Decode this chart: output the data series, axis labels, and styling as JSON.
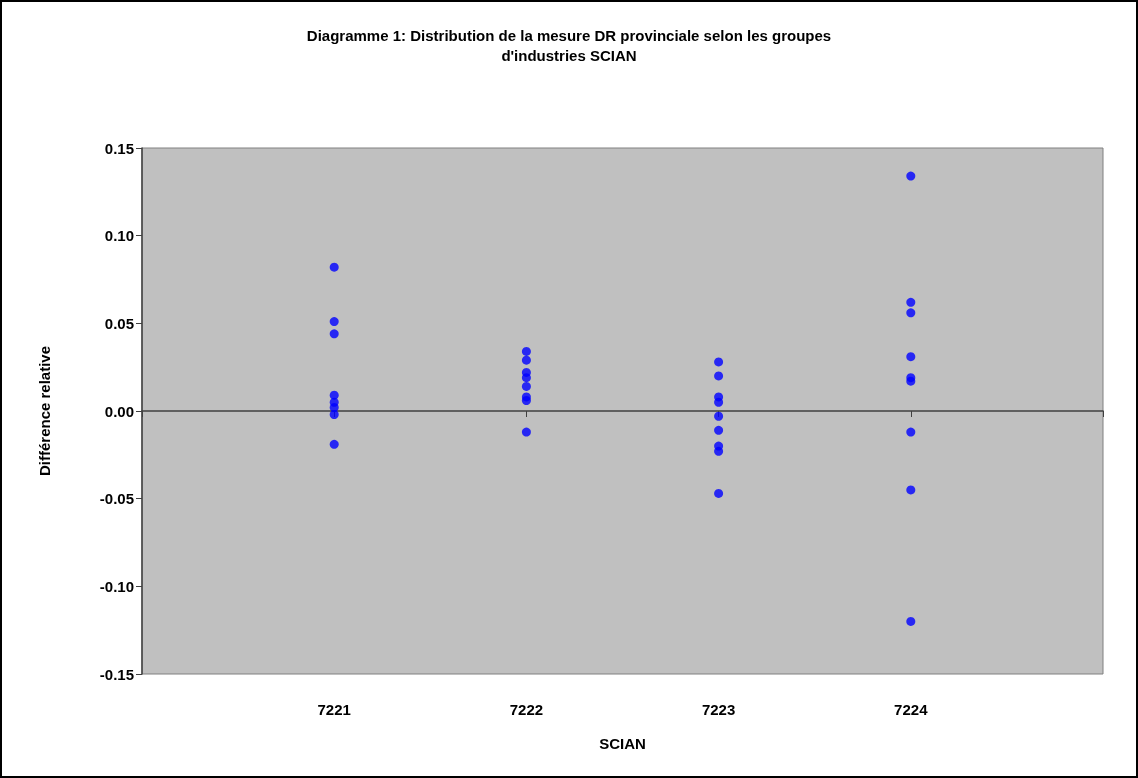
{
  "chart_data": {
    "type": "scatter",
    "title": "Diagramme 1: Distribution de la mesure DR provinciale selon les groupes\nd'industries SCIAN",
    "xlabel": "SCIAN",
    "ylabel": "Différence relative",
    "x": [
      7221,
      7221,
      7221,
      7221,
      7221,
      7221,
      7221,
      7221,
      7222,
      7222,
      7222,
      7222,
      7222,
      7222,
      7222,
      7222,
      7223,
      7223,
      7223,
      7223,
      7223,
      7223,
      7223,
      7223,
      7223,
      7224,
      7224,
      7224,
      7224,
      7224,
      7224,
      7224,
      7224,
      7224
    ],
    "values": [
      0.082,
      0.051,
      0.044,
      0.009,
      0.005,
      0.002,
      -0.002,
      -0.019,
      0.034,
      0.029,
      0.022,
      0.019,
      0.014,
      0.008,
      0.006,
      -0.012,
      0.028,
      0.02,
      0.008,
      0.005,
      -0.003,
      -0.011,
      -0.02,
      -0.023,
      -0.047,
      0.134,
      0.062,
      0.056,
      0.031,
      0.019,
      0.017,
      -0.012,
      -0.045,
      -0.12
    ],
    "color": "#0000ff",
    "marker": "circle",
    "xlim": [
      7220,
      7225
    ],
    "xticks": [
      {
        "value": 7220,
        "label": null
      },
      7221,
      7222,
      7223,
      7224,
      {
        "value": 7225,
        "label": null
      }
    ],
    "ylim": [
      -0.15,
      0.15
    ],
    "yticks": [
      {
        "value": -0.15,
        "label": "-0.15"
      },
      {
        "value": -0.1,
        "label": "-0.10"
      },
      {
        "value": -0.05,
        "label": "-0.05"
      },
      {
        "value": 0,
        "label": "0.00"
      },
      {
        "value": 0.05,
        "label": "0.05"
      },
      {
        "value": 0.1,
        "label": "0.10"
      },
      {
        "value": 0.15,
        "label": "0.15"
      }
    ]
  }
}
